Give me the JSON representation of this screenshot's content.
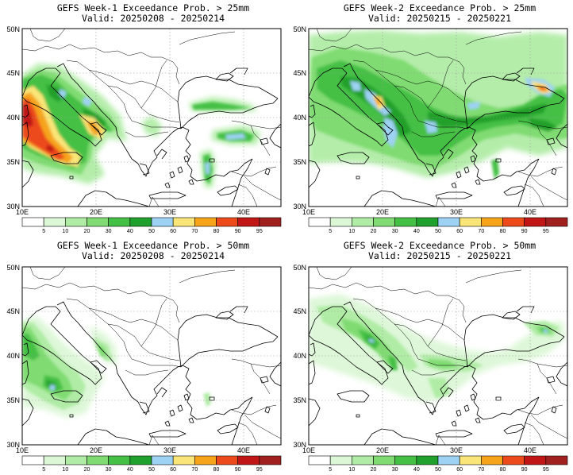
{
  "map": {
    "x_ticks": [
      "10E",
      "20E",
      "30E",
      "40E"
    ],
    "y_ticks": [
      "30N",
      "35N",
      "40N",
      "45N",
      "50N"
    ],
    "extent": {
      "lon": [
        10,
        45
      ],
      "lat": [
        30,
        50
      ]
    },
    "land_color": "#ffffff",
    "coastline_color": "#000000",
    "grid_style": "dotted"
  },
  "colorbar": {
    "levels": [
      "5",
      "10",
      "20",
      "30",
      "40",
      "50",
      "60",
      "70",
      "80",
      "90",
      "95"
    ],
    "colors": [
      "#ffffff",
      "#dcf7d6",
      "#b0eca6",
      "#80dc72",
      "#44c044",
      "#20a02c",
      "#9ed2f4",
      "#fae678",
      "#f6a41a",
      "#ec4a1a",
      "#c01616",
      "#a02020"
    ]
  },
  "panels": [
    {
      "id": "p1",
      "title": "GEFS Week-1 Exceedance Prob. > 25mm",
      "valid": "Valid: 20250208 - 20250214"
    },
    {
      "id": "p2",
      "title": "GEFS Week-2 Exceedance Prob. > 25mm",
      "valid": "Valid: 20250215 - 20250221"
    },
    {
      "id": "p3",
      "title": "GEFS Week-1 Exceedance Prob. > 50mm",
      "valid": "Valid: 20250208 - 20250214"
    },
    {
      "id": "p4",
      "title": "GEFS Week-2 Exceedance Prob. > 50mm",
      "valid": "Valid: 20250215 - 20250221"
    }
  ]
}
